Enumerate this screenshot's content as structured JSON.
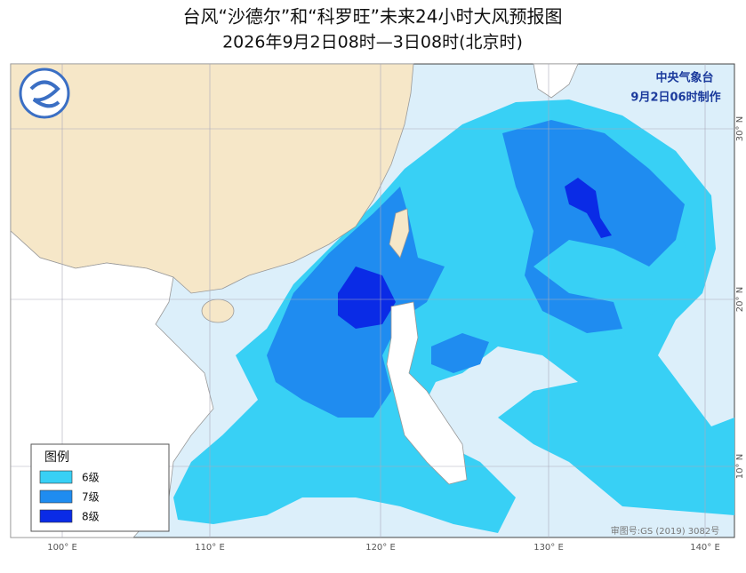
{
  "header": {
    "title": "台风“沙德尔”和“科罗旺”未来24小时大风预报图",
    "subtitle": "2026年9月2日08时—3日08时(北京时)"
  },
  "issuer": {
    "agency": "中央气象台",
    "issued": "9月2日06时制作"
  },
  "legend": {
    "title": "图例",
    "items": [
      "6级",
      "7级",
      "8级"
    ]
  },
  "map": {
    "lon_labels": [
      "100° E",
      "110° E",
      "120° E",
      "130° E",
      "140° E"
    ],
    "lat_labels": [
      "30° N",
      "20° N",
      "10° N"
    ],
    "review_number": "审图号:GS (2019) 3082号"
  }
}
